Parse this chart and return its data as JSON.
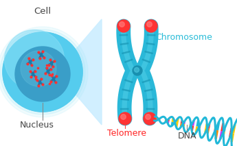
{
  "background_color": "#ffffff",
  "labels": {
    "cell": "Cell",
    "nucleus": "Nucleus",
    "chromosome": "Chromosome",
    "telomere": "Telomere",
    "dna": "DNA"
  },
  "label_colors": {
    "cell": "#444444",
    "nucleus": "#444444",
    "chromosome": "#29bcd8",
    "telomere": "#ff2222",
    "dna": "#444444"
  },
  "colors": {
    "cell_outer_light": "#a0e8f8",
    "cell_outer": "#55ccee",
    "cell_inner_light": "#70c8e8",
    "cell_inner": "#3a9ec8",
    "chromosome_body": "#2ab8d8",
    "chromosome_light": "#55d0e8",
    "chromosome_dark": "#1890b0",
    "chromosome_stripe": "#1a9ab8",
    "telomere_cap": "#ff3333",
    "telomere_highlight": "#ff7777",
    "dna_backbone1": "#22b8d8",
    "dna_backbone2": "#22b8d8",
    "dna_rungs": [
      "#ff3333",
      "#ffcc00",
      "#ff8800",
      "#cc33ff",
      "#22b8d8",
      "#ff3333",
      "#ffcc00"
    ],
    "cone_color": "#cceeff",
    "chromatin": "#1a7aaa"
  },
  "figsize": [
    3.45,
    2.13
  ],
  "dpi": 100
}
